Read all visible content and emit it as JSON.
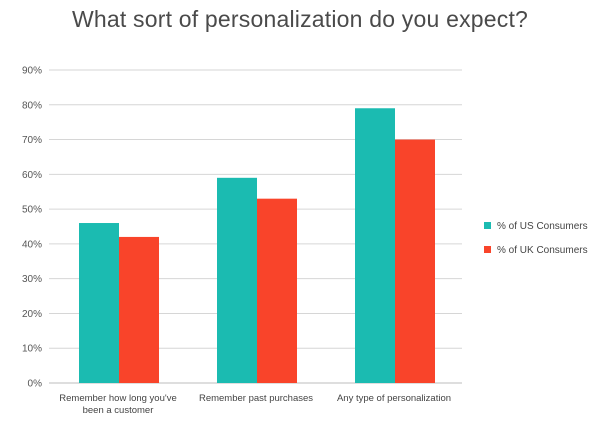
{
  "chart_data": {
    "type": "bar",
    "title": "What sort of personalization do you expect?",
    "categories": [
      [
        "Remember how long you've",
        "been a customer"
      ],
      [
        "Remember past purchases"
      ],
      [
        "Any type of personalization"
      ]
    ],
    "series": [
      {
        "name": "% of US Consumers",
        "color": "#1BBBB1",
        "values": [
          46,
          59,
          79
        ]
      },
      {
        "name": "% of UK Consumers",
        "color": "#F9442A",
        "values": [
          42,
          53,
          70
        ]
      }
    ],
    "yticks": [
      "0%",
      "10%",
      "20%",
      "30%",
      "40%",
      "50%",
      "60%",
      "70%",
      "80%",
      "90%"
    ],
    "ylim": [
      0,
      90
    ],
    "grid": true,
    "legend": "right"
  }
}
